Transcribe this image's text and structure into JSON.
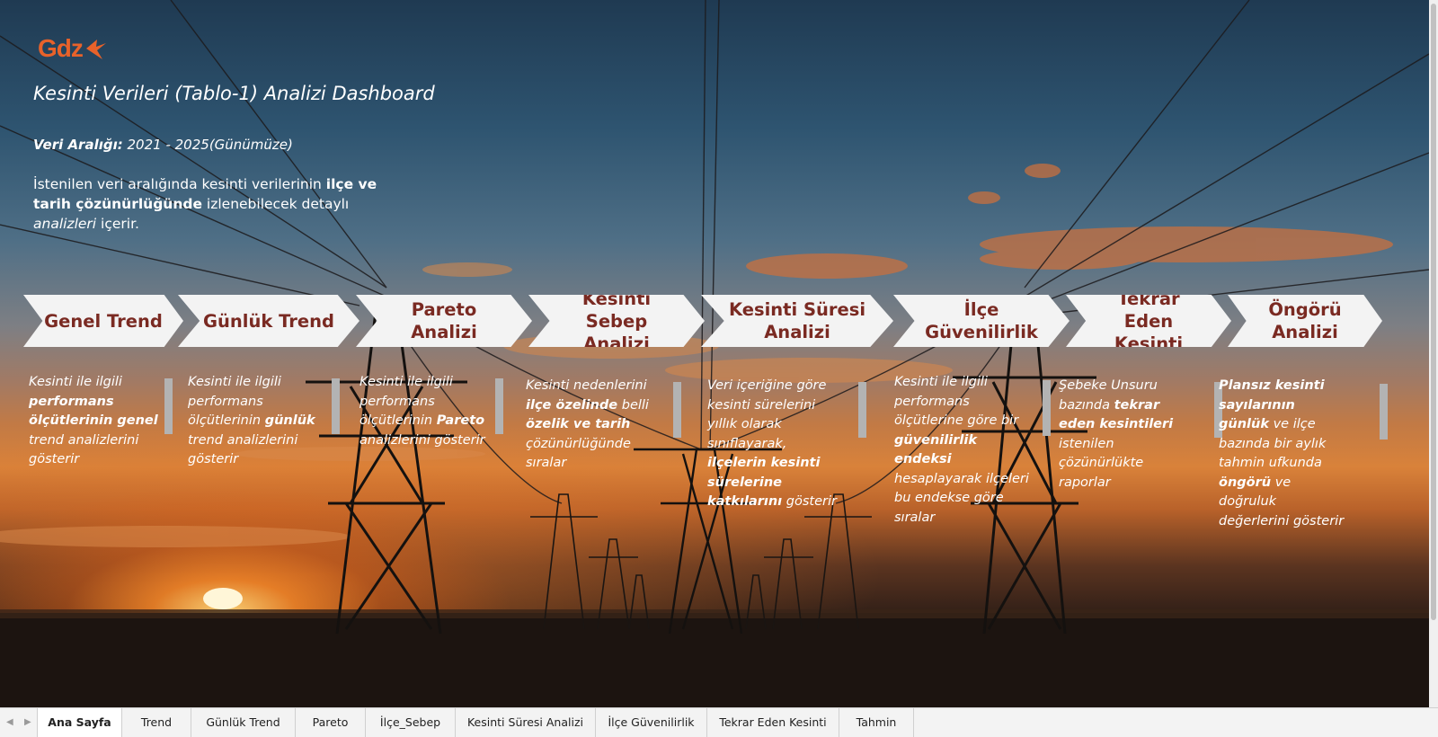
{
  "header": {
    "logo_text": "Gdz",
    "title": "Kesinti Verileri (Tablo-1) Analizi Dashboard",
    "range_label": "Veri Aralığı:",
    "range_value": " 2021 - 2025(Günümüze)",
    "desc_1": "İstenilen veri aralığında kesinti verilerinin ",
    "desc_2": "ilçe ve tarih çözünürlüğünde",
    "desc_3": " izlenebilecek detaylı ",
    "desc_4": "analizleri",
    "desc_5": " içerir."
  },
  "nav": [
    {
      "label": "Genel Trend"
    },
    {
      "label": "Günlük Trend"
    },
    {
      "label": "Pareto Analizi"
    },
    {
      "label": "Kesinti Sebep Analizi"
    },
    {
      "label": "Kesinti Süresi Analizi"
    },
    {
      "label": "İlçe Güvenilirlik"
    },
    {
      "label": "Tekrar Eden Kesinti"
    },
    {
      "label": "Öngörü Analizi"
    }
  ],
  "cards": {
    "c0": [
      "Kesinti ile ilgili ",
      "performans ölçütlerinin genel",
      " trend analizlerini gösterir"
    ],
    "c1": [
      "Kesinti ile ilgili performans ölçütlerinin ",
      "günlük",
      " trend analizlerini gösterir"
    ],
    "c2": [
      "Kesinti ile ilgili performans ölçütlerinin ",
      "Pareto",
      " analizlerini gösterir"
    ],
    "c3": [
      "Kesinti  nedenlerini ",
      "ilçe özelinde",
      " belli ",
      "özelik ve tarih",
      " çözünürlüğünde sıralar"
    ],
    "c4": [
      "Veri içeriğine göre kesinti sürelerini yıllık olarak sınıflayarak, ",
      "ilçelerin kesinti sürelerine katkılarını",
      " gösterir"
    ],
    "c5": [
      "Kesinti ile ilgili performans ölçütlerine göre bir ",
      "güvenilirlik endeksi",
      " hesaplayarak ilçeleri bu endekse göre sıralar"
    ],
    "c6": [
      "Şebeke Unsuru bazında ",
      "tekrar eden kesintileri",
      " istenilen çözünürlükte raporlar"
    ],
    "c7": [
      "Plansız kesinti sayılarının günlük",
      " ve  ilçe bazında bir aylık tahmin ufkunda ",
      "öngörü",
      " ve doğruluk değerlerini gösterir"
    ]
  },
  "tabs": [
    {
      "label": "Ana Sayfa",
      "active": true
    },
    {
      "label": "Trend"
    },
    {
      "label": "Günlük Trend"
    },
    {
      "label": "Pareto"
    },
    {
      "label": "İlçe_Sebep"
    },
    {
      "label": "Kesinti Süresi Analizi"
    },
    {
      "label": "İlçe Güvenilirlik"
    },
    {
      "label": "Tekrar Eden Kesinti"
    },
    {
      "label": "Tahmin"
    }
  ],
  "colors": {
    "brand": "#e8622a",
    "chevron_text": "#7a2a22",
    "chevron_bg": "#f3f3f3"
  }
}
